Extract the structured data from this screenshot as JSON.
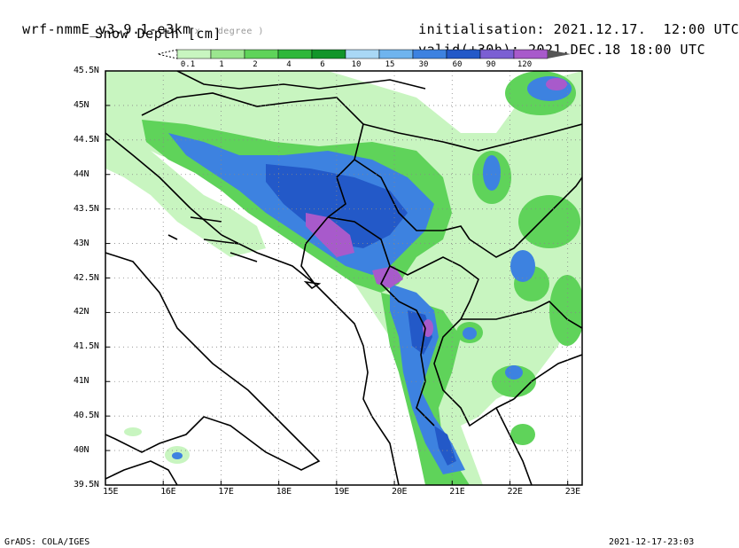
{
  "header": {
    "model": "wrf-nmmE_v3.9.1-e3km",
    "units_note": "x . degree )",
    "variable": "Snow Depth [cm]",
    "init_label": "initialisation:",
    "init_value": "2021.12.17.  12:00 UTC",
    "valid_label": "valid(+30h):",
    "valid_value": "2021.DEC.18 18:00 UTC"
  },
  "colorbar": {
    "levels": [
      "0.1",
      "1",
      "2",
      "4",
      "6",
      "10",
      "15",
      "30",
      "60",
      "90",
      "120"
    ],
    "colors": [
      "#c8f5c0",
      "#9be68f",
      "#5fd35a",
      "#2fb73a",
      "#12952a",
      "#a9d8f5",
      "#6fb4ee",
      "#3d82e0",
      "#2359c8",
      "#7b5fd3",
      "#a85acb"
    ],
    "end_color": "#555555"
  },
  "map": {
    "lon_labels": [
      "15E",
      "16E",
      "17E",
      "18E",
      "19E",
      "20E",
      "21E",
      "22E",
      "23E"
    ],
    "lat_labels": [
      "45.5N",
      "45N",
      "44.5N",
      "44N",
      "43.5N",
      "43N",
      "42.5N",
      "42N",
      "41.5N",
      "41N",
      "40.5N",
      "40N",
      "39.5N"
    ],
    "lon_range": [
      15,
      23.25
    ],
    "lat_range": [
      39.5,
      45.5
    ]
  },
  "footer": {
    "left": "GrADS: COLA/IGES",
    "right": "2021-12-17-23:03"
  }
}
